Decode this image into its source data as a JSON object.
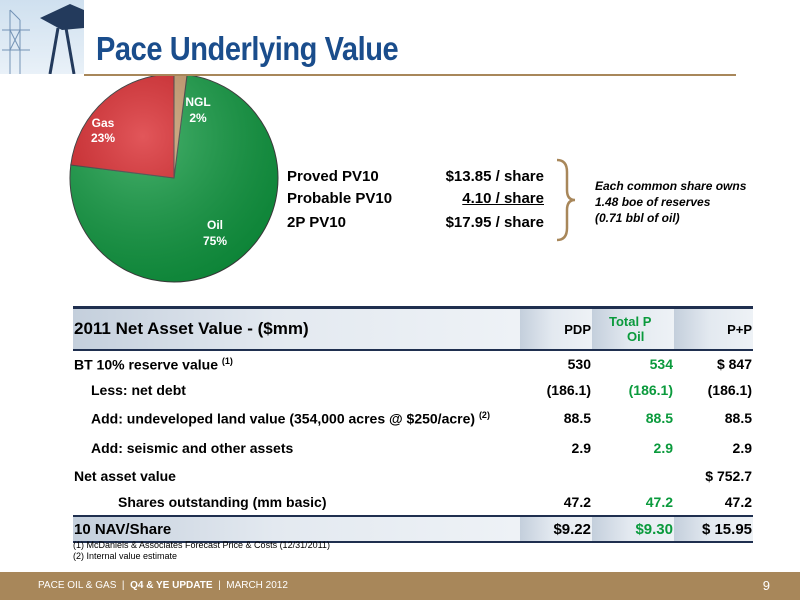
{
  "page": {
    "title": "Pace Underlying Value"
  },
  "chart_data": {
    "type": "pie",
    "slices": [
      {
        "label": "Oil",
        "value": 75,
        "value_label": "75%",
        "color": "#0d9a3f"
      },
      {
        "label": "Gas",
        "value": 23,
        "value_label": "23%",
        "color": "#d81e23"
      },
      {
        "label": "NGL",
        "value": 2,
        "value_label": "2%",
        "color": "#c89a6a"
      }
    ]
  },
  "pv10": {
    "proved_label": "Proved PV10",
    "proved_value": "$13.85 / share",
    "probable_label": "Probable PV10",
    "probable_value": "4.10 / share",
    "total_label": "2P PV10",
    "total_value": "$17.95 / share"
  },
  "note": {
    "line1": "Each common share owns",
    "line2": "1.48 boe of reserves",
    "line3": "(0.71 bbl of oil)"
  },
  "table": {
    "title": "2011 Net Asset Value - ($mm)",
    "col1": "PDP",
    "col2_line1": "Total P",
    "col2_line2": "Oil",
    "col3": "P+P",
    "rows": [
      {
        "label": "BT 10% reserve value",
        "sup": "(1)",
        "pdp": "530",
        "oil": "534",
        "pp": "$ 847"
      },
      {
        "label": "Less: net debt",
        "sup": "",
        "pdp": "(186.1)",
        "oil": "(186.1)",
        "pp": "(186.1)"
      },
      {
        "label": "Add: undeveloped land value (354,000 acres @ $250/acre)",
        "sup": "(2)",
        "pdp": "88.5",
        "oil": "88.5",
        "pp": "88.5"
      },
      {
        "label": "Add: seismic and other assets",
        "sup": "",
        "pdp": "2.9",
        "oil": "2.9",
        "pp": "2.9"
      },
      {
        "label": "Net asset value",
        "sup": "",
        "pdp": "",
        "oil": "",
        "pp": "$ 752.7"
      },
      {
        "label": "Shares outstanding (mm basic)",
        "sup": "",
        "pdp": "47.2",
        "oil": "47.2",
        "pp": "47.2"
      }
    ],
    "nav_row": {
      "label": "10 NAV/Share",
      "pdp": "$9.22",
      "oil": "$9.30",
      "pp": "$ 15.95"
    }
  },
  "footnotes": {
    "f1": "(1)    McDaniels & Associates Forecast Price & Costs (12/31/2011)",
    "f2": "(2)    Internal value estimate"
  },
  "footer": {
    "company": "PACE OIL & GAS",
    "update": "Q4 & YE UPDATE",
    "date": "MARCH 2012",
    "page_number": "9"
  }
}
